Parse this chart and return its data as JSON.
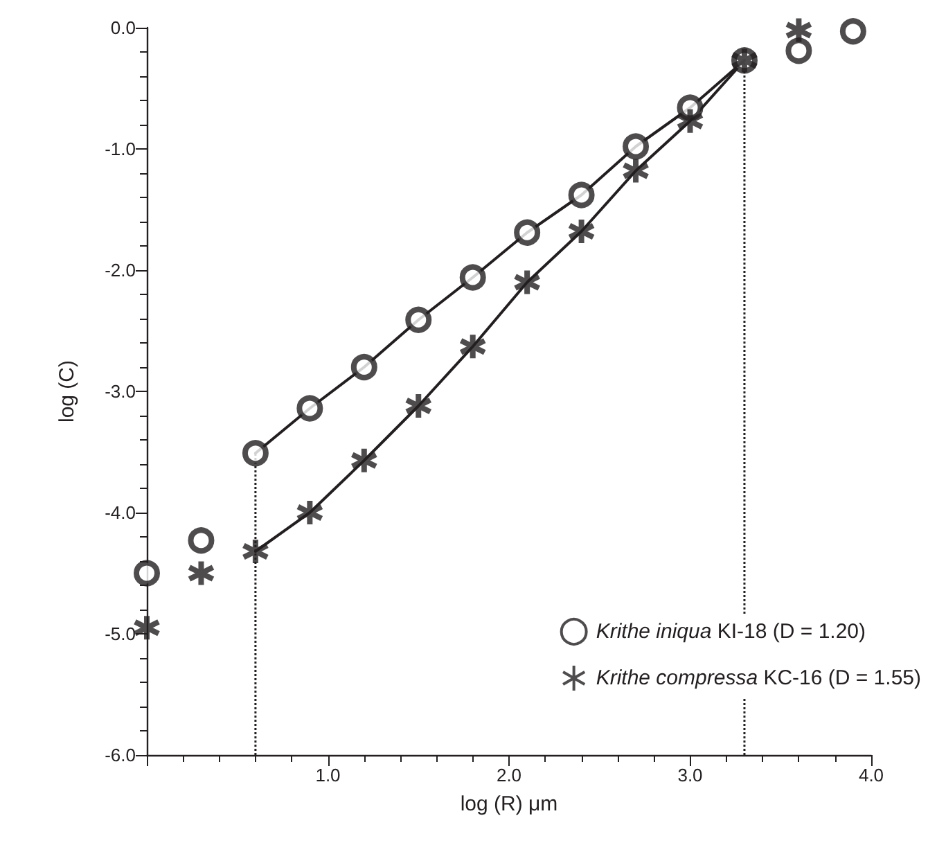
{
  "chart_data": {
    "type": "scatter",
    "xlabel": "log (R) μm",
    "ylabel": "log (C)",
    "xlim": [
      0,
      4
    ],
    "ylim": [
      -6,
      0
    ],
    "xticks": [
      {
        "value": 0,
        "label": null
      },
      {
        "value": 1,
        "label": "1.0"
      },
      {
        "value": 2,
        "label": "2.0"
      },
      {
        "value": 3,
        "label": "3.0"
      },
      {
        "value": 4,
        "label": "4.0"
      }
    ],
    "yticks": [
      {
        "value": -6,
        "label": "-6.0"
      },
      {
        "value": -5,
        "label": "-5.0"
      },
      {
        "value": -4,
        "label": "-4.0"
      },
      {
        "value": -3,
        "label": "-3.0"
      },
      {
        "value": -2,
        "label": "-2.0"
      },
      {
        "value": -1,
        "label": "-1.0"
      },
      {
        "value": 0,
        "label": "0.0"
      }
    ],
    "grid": false,
    "legend": "bottom right",
    "x": [
      0,
      0.3,
      0.6,
      0.9,
      1.2,
      1.5,
      1.8,
      2.1,
      2.4,
      2.7,
      3.0,
      3.3,
      3.6,
      3.9
    ],
    "series": [
      {
        "name": "Krithe iniqua KI-18 (D = 1.20)",
        "color": "#231f20",
        "marker": "circle",
        "values": [
          -4.5,
          -4.23,
          -3.51,
          -3.14,
          -2.8,
          -2.41,
          -2.06,
          -1.69,
          -1.38,
          -0.98,
          -0.66,
          -0.27,
          -0.19,
          -0.03
        ]
      },
      {
        "name": "Krithe compressa KC-16 (D = 1.55)",
        "color": "#231f20",
        "marker": "cross",
        "values": [
          -4.95,
          -4.5,
          -4.32,
          -4.0,
          -3.57,
          -3.12,
          -2.63,
          -2.1,
          -1.68,
          -1.18,
          -0.77,
          -0.27,
          -0.02,
          null
        ]
      },
      {
        "type": "line",
        "color": "#231f20",
        "marker": "none",
        "line_style": "solid",
        "x": [
          0.6,
          0.9,
          1.2,
          1.5,
          1.8,
          2.1,
          2.4,
          2.7,
          3.0,
          3.3
        ],
        "values": [
          -3.51,
          -3.14,
          -2.8,
          -2.41,
          -2.06,
          -1.69,
          -1.38,
          -0.98,
          -0.66,
          -0.27
        ]
      },
      {
        "type": "line",
        "color": "#231f20",
        "marker": "none",
        "line_style": "solid",
        "x": [
          0.6,
          0.9,
          1.2,
          1.5,
          1.8,
          2.1,
          2.4,
          2.7,
          3.0,
          3.3
        ],
        "values": [
          -4.32,
          -4.0,
          -3.57,
          -3.12,
          -2.63,
          -2.1,
          -1.68,
          -1.18,
          -0.77,
          -0.27
        ]
      }
    ],
    "ref_lines": [
      {
        "axis": "x",
        "value": 0.6,
        "line_style": "dotted",
        "color": "#231f20"
      },
      {
        "axis": "x",
        "value": 3.3,
        "line_style": "dotted",
        "color": "#231f20"
      }
    ]
  }
}
